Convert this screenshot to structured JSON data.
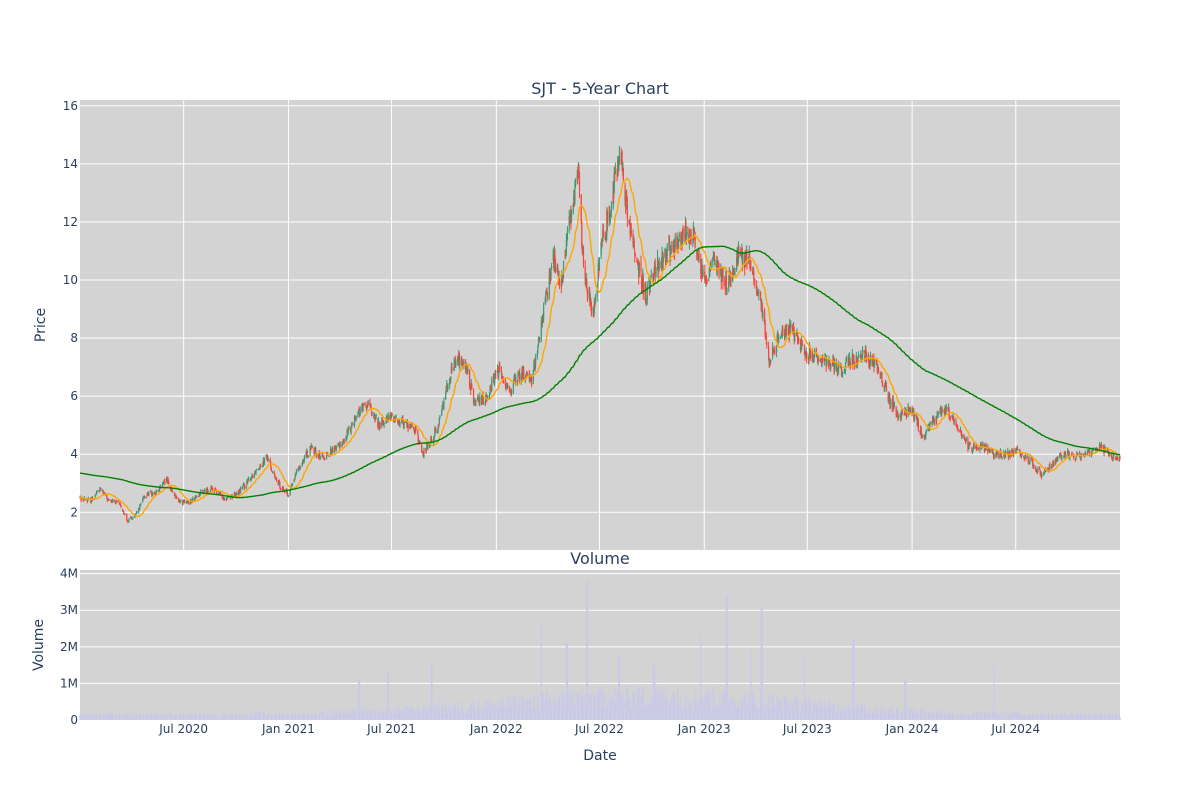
{
  "chart_data": [
    {
      "type": "candlestick",
      "title": "SJT - 5-Year Chart",
      "ylabel": "Price",
      "yticks": [
        2,
        4,
        6,
        8,
        10,
        12,
        14,
        16
      ],
      "ylim": [
        0.7,
        16.2
      ],
      "xlim": [
        "2020-01-01",
        "2024-12-31"
      ],
      "grid": true,
      "overlays": [
        {
          "color": "#ffa500"
        },
        {
          "color": "#008000"
        }
      ],
      "colors": {
        "up": "#3d9970",
        "down": "#ff4136",
        "background": "#d3d3d3",
        "grid": "#ffffff"
      },
      "close_anchors": [
        [
          "2020-01-01",
          2.5
        ],
        [
          "2020-01-20",
          2.4
        ],
        [
          "2020-02-05",
          2.8
        ],
        [
          "2020-02-20",
          2.4
        ],
        [
          "2020-03-10",
          2.3
        ],
        [
          "2020-03-25",
          1.7
        ],
        [
          "2020-04-08",
          1.9
        ],
        [
          "2020-04-25",
          2.6
        ],
        [
          "2020-05-15",
          2.7
        ],
        [
          "2020-06-01",
          3.1
        ],
        [
          "2020-06-20",
          2.4
        ],
        [
          "2020-07-10",
          2.3
        ],
        [
          "2020-08-01",
          2.7
        ],
        [
          "2020-08-20",
          2.8
        ],
        [
          "2020-09-10",
          2.5
        ],
        [
          "2020-10-01",
          2.6
        ],
        [
          "2020-10-20",
          3.0
        ],
        [
          "2020-11-10",
          3.6
        ],
        [
          "2020-11-25",
          3.9
        ],
        [
          "2020-12-10",
          3.1
        ],
        [
          "2021-01-01",
          2.6
        ],
        [
          "2021-01-20",
          3.6
        ],
        [
          "2021-02-10",
          4.2
        ],
        [
          "2021-03-01",
          3.9
        ],
        [
          "2021-03-20",
          4.1
        ],
        [
          "2021-04-10",
          4.5
        ],
        [
          "2021-05-01",
          5.4
        ],
        [
          "2021-05-20",
          5.7
        ],
        [
          "2021-06-10",
          5.0
        ],
        [
          "2021-07-01",
          5.3
        ],
        [
          "2021-07-20",
          5.1
        ],
        [
          "2021-08-10",
          4.9
        ],
        [
          "2021-08-25",
          4.0
        ],
        [
          "2021-09-20",
          4.9
        ],
        [
          "2021-10-10",
          6.7
        ],
        [
          "2021-10-25",
          7.3
        ],
        [
          "2021-11-10",
          6.9
        ],
        [
          "2021-11-25",
          5.7
        ],
        [
          "2021-12-15",
          6.0
        ],
        [
          "2022-01-05",
          6.9
        ],
        [
          "2022-01-25",
          6.2
        ],
        [
          "2022-02-15",
          6.8
        ],
        [
          "2022-03-05",
          6.6
        ],
        [
          "2022-03-25",
          8.8
        ],
        [
          "2022-04-10",
          10.8
        ],
        [
          "2022-04-25",
          9.8
        ],
        [
          "2022-05-10",
          12.2
        ],
        [
          "2022-05-25",
          13.5
        ],
        [
          "2022-06-05",
          10.0
        ],
        [
          "2022-06-20",
          8.9
        ],
        [
          "2022-07-05",
          11.2
        ],
        [
          "2022-07-20",
          12.5
        ],
        [
          "2022-08-05",
          14.5
        ],
        [
          "2022-08-20",
          12.2
        ],
        [
          "2022-09-05",
          10.6
        ],
        [
          "2022-09-20",
          9.5
        ],
        [
          "2022-10-10",
          10.6
        ],
        [
          "2022-11-01",
          11.0
        ],
        [
          "2022-11-20",
          11.3
        ],
        [
          "2022-12-10",
          11.8
        ],
        [
          "2023-01-01",
          10.0
        ],
        [
          "2023-01-20",
          10.6
        ],
        [
          "2023-02-10",
          9.8
        ],
        [
          "2023-03-01",
          10.8
        ],
        [
          "2023-03-20",
          10.7
        ],
        [
          "2023-04-10",
          9.2
        ],
        [
          "2023-04-25",
          7.2
        ],
        [
          "2023-05-15",
          8.1
        ],
        [
          "2023-06-05",
          8.3
        ],
        [
          "2023-06-25",
          7.5
        ],
        [
          "2023-07-15",
          7.4
        ],
        [
          "2023-08-05",
          7.2
        ],
        [
          "2023-08-25",
          6.9
        ],
        [
          "2023-09-15",
          7.2
        ],
        [
          "2023-10-10",
          7.4
        ],
        [
          "2023-11-01",
          7.0
        ],
        [
          "2023-11-20",
          6.0
        ],
        [
          "2023-12-10",
          5.3
        ],
        [
          "2024-01-01",
          5.5
        ],
        [
          "2024-01-20",
          4.6
        ],
        [
          "2024-02-10",
          5.2
        ],
        [
          "2024-03-01",
          5.6
        ],
        [
          "2024-03-20",
          5.0
        ],
        [
          "2024-04-10",
          4.2
        ],
        [
          "2024-05-01",
          4.3
        ],
        [
          "2024-05-20",
          4.0
        ],
        [
          "2024-06-15",
          4.0
        ],
        [
          "2024-07-05",
          4.1
        ],
        [
          "2024-07-25",
          3.8
        ],
        [
          "2024-08-15",
          3.3
        ],
        [
          "2024-09-05",
          3.7
        ],
        [
          "2024-09-25",
          4.0
        ],
        [
          "2024-10-20",
          3.9
        ],
        [
          "2024-11-10",
          4.1
        ],
        [
          "2024-11-25",
          4.3
        ],
        [
          "2024-12-15",
          3.9
        ],
        [
          "2024-12-31",
          3.8
        ]
      ]
    },
    {
      "type": "bar",
      "title": "Volume",
      "xlabel": "Date",
      "ylabel": "Volume",
      "yticks": [
        0,
        1000000,
        2000000,
        3000000,
        4000000
      ],
      "ytick_labels": [
        "0",
        "1M",
        "2M",
        "3M",
        "4M"
      ],
      "ylim": [
        0,
        4100000
      ],
      "xticks": [
        "2020-07-01",
        "2021-01-01",
        "2021-07-01",
        "2022-01-01",
        "2022-07-01",
        "2023-01-01",
        "2023-07-01",
        "2024-01-01",
        "2024-07-01"
      ],
      "xtick_labels": [
        "Jul 2020",
        "Jan 2021",
        "Jul 2021",
        "Jan 2022",
        "Jul 2022",
        "Jan 2023",
        "Jul 2023",
        "Jan 2024",
        "Jul 2024"
      ],
      "bar_color": "#c9c9e8",
      "spikes": [
        [
          "2021-05-05",
          1100000
        ],
        [
          "2021-06-25",
          1300000
        ],
        [
          "2021-09-10",
          1500000
        ],
        [
          "2022-03-20",
          2600000
        ],
        [
          "2022-05-05",
          2100000
        ],
        [
          "2022-06-10",
          3800000
        ],
        [
          "2022-08-05",
          1800000
        ],
        [
          "2022-10-05",
          1500000
        ],
        [
          "2022-12-25",
          2300000
        ],
        [
          "2023-02-10",
          3400000
        ],
        [
          "2023-03-25",
          1900000
        ],
        [
          "2023-04-12",
          3100000
        ],
        [
          "2023-06-25",
          1800000
        ],
        [
          "2023-09-20",
          2200000
        ],
        [
          "2023-12-20",
          1100000
        ],
        [
          "2024-05-25",
          1500000
        ]
      ]
    }
  ]
}
